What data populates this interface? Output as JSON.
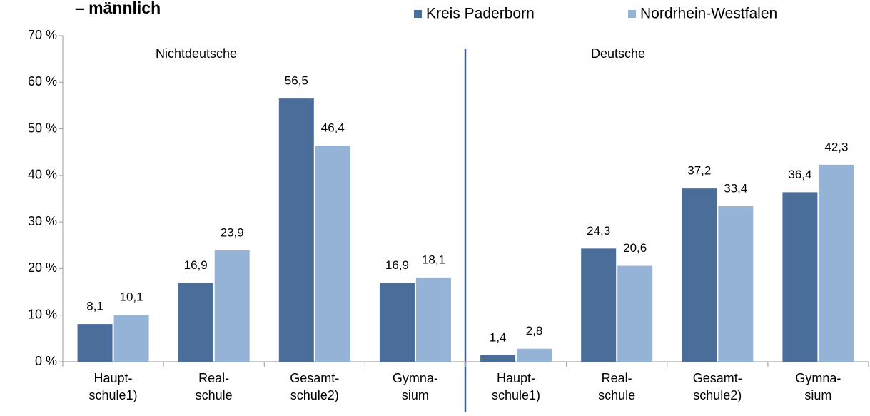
{
  "chart_data": {
    "type": "bar",
    "title": "– männlich",
    "annotations": [
      "Nichtdeutsche",
      "Deutsche"
    ],
    "categories": [
      "Haupt-\nschule1)",
      "Real-\nschule",
      "Gesamt-\nschule2)",
      "Gymna-\nsium",
      "Haupt-\nschule1)",
      "Real-\nschule",
      "Gesamt-\nschule2)",
      "Gymna-\nsium"
    ],
    "series": [
      {
        "name": "Kreis Paderborn",
        "color": "#4a6d9a",
        "values": [
          8.1,
          16.9,
          56.5,
          16.9,
          1.4,
          24.3,
          37.2,
          36.4
        ],
        "value_labels": [
          "8,1",
          "16,9",
          "56,5",
          "16,9",
          "1,4",
          "24,3",
          "37,2",
          "36,4"
        ]
      },
      {
        "name": "Nordrhein-Westfalen",
        "color": "#95b3d7",
        "values": [
          10.1,
          23.9,
          46.4,
          18.1,
          2.8,
          20.6,
          33.4,
          42.3
        ],
        "value_labels": [
          "10,1",
          "23,9",
          "46,4",
          "18,1",
          "2,8",
          "20,6",
          "33,4",
          "42,3"
        ]
      }
    ],
    "ylim": [
      0,
      70
    ],
    "yticks": [
      {
        "value": 0,
        "label": "0 %"
      },
      {
        "value": 10,
        "label": "10 %"
      },
      {
        "value": 20,
        "label": "20 %"
      },
      {
        "value": 30,
        "label": "30 %"
      },
      {
        "value": 40,
        "label": "40 %"
      },
      {
        "value": 50,
        "label": "50 %"
      },
      {
        "value": 60,
        "label": "60 %"
      },
      {
        "value": 70,
        "label": "70 %"
      }
    ],
    "grid": false,
    "legend": "top"
  }
}
